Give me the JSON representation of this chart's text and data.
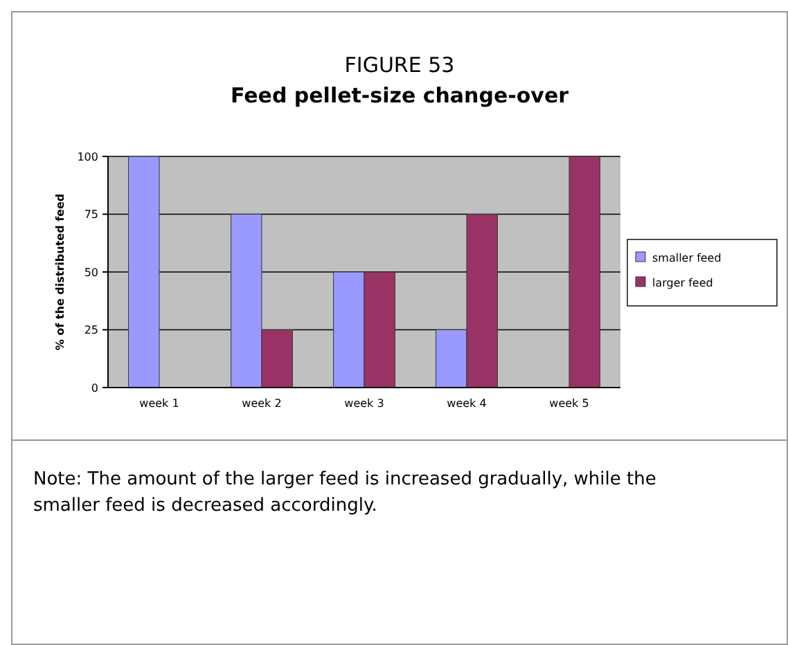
{
  "chart_data": {
    "type": "bar",
    "title": "FIGURE 53",
    "subtitle": "Feed pellet-size change-over",
    "ylabel": "% of the distributed feed",
    "categories": [
      "week 1",
      "week 2",
      "week 3",
      "week 4",
      "week 5"
    ],
    "series": [
      {
        "name": "smaller feed",
        "color": "#9999ff",
        "values": [
          100,
          75,
          50,
          25,
          0
        ]
      },
      {
        "name": "larger feed",
        "color": "#993366",
        "values": [
          0,
          25,
          50,
          75,
          100
        ]
      }
    ],
    "ylim": [
      0,
      100
    ],
    "yticks": [
      0,
      25,
      50,
      75,
      100
    ],
    "grid": "y",
    "legend": "right",
    "annotations": [
      "Note: The amount of the larger feed is increased gradually, while the smaller feed is decreased accordingly."
    ]
  }
}
